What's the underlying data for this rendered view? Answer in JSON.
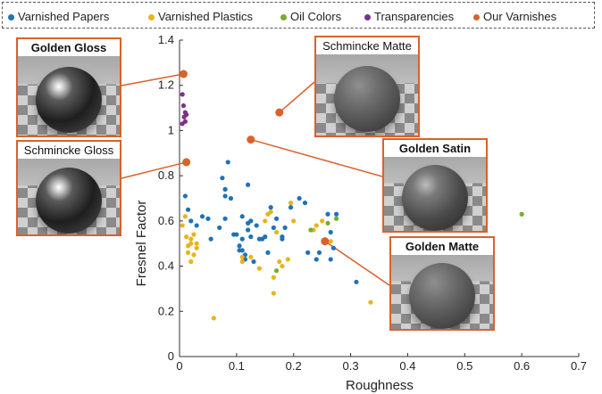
{
  "chart_data": {
    "type": "scatter",
    "title": "",
    "xlabel": "Roughness",
    "ylabel": "Fresnel Factor",
    "xlim": [
      0,
      0.7
    ],
    "ylim": [
      0,
      1.4
    ],
    "xticks": [
      "0",
      "0.1",
      "0.2",
      "0.3",
      "0.4",
      "0.5",
      "0.6",
      "0.7"
    ],
    "yticks": [
      "0",
      "0.2",
      "0.4",
      "0.6",
      "0.8",
      "1",
      "1.2",
      "1.4"
    ],
    "grid": false,
    "legend_position": "top",
    "series": [
      {
        "name": "Varnished Papers",
        "color": "#1f72b8",
        "points": [
          [
            0.01,
            0.71
          ],
          [
            0.015,
            0.65
          ],
          [
            0.02,
            0.6
          ],
          [
            0.03,
            0.58
          ],
          [
            0.04,
            0.62
          ],
          [
            0.05,
            0.61
          ],
          [
            0.055,
            0.52
          ],
          [
            0.07,
            0.57
          ],
          [
            0.075,
            0.79
          ],
          [
            0.08,
            0.74
          ],
          [
            0.08,
            0.71
          ],
          [
            0.08,
            0.61
          ],
          [
            0.085,
            0.86
          ],
          [
            0.09,
            0.7
          ],
          [
            0.095,
            0.54
          ],
          [
            0.1,
            0.54
          ],
          [
            0.105,
            0.49
          ],
          [
            0.105,
            0.47
          ],
          [
            0.11,
            0.62
          ],
          [
            0.11,
            0.52
          ],
          [
            0.11,
            0.47
          ],
          [
            0.115,
            0.45
          ],
          [
            0.115,
            0.43
          ],
          [
            0.12,
            0.76
          ],
          [
            0.12,
            0.59
          ],
          [
            0.12,
            0.56
          ],
          [
            0.125,
            0.6
          ],
          [
            0.125,
            0.53
          ],
          [
            0.13,
            0.42
          ],
          [
            0.135,
            0.58
          ],
          [
            0.14,
            0.52
          ],
          [
            0.145,
            0.52
          ],
          [
            0.15,
            0.53
          ],
          [
            0.155,
            0.46
          ],
          [
            0.16,
            0.66
          ],
          [
            0.165,
            0.57
          ],
          [
            0.17,
            0.61
          ],
          [
            0.18,
            0.53
          ],
          [
            0.18,
            0.52
          ],
          [
            0.185,
            0.57
          ],
          [
            0.195,
            0.66
          ],
          [
            0.21,
            0.7
          ],
          [
            0.22,
            0.68
          ],
          [
            0.225,
            0.46
          ],
          [
            0.24,
            0.43
          ],
          [
            0.245,
            0.46
          ],
          [
            0.26,
            0.63
          ],
          [
            0.265,
            0.55
          ],
          [
            0.265,
            0.43
          ],
          [
            0.27,
            0.48
          ],
          [
            0.275,
            0.63
          ],
          [
            0.31,
            0.33
          ]
        ]
      },
      {
        "name": "Varnished Plastics",
        "color": "#e8b41c",
        "points": [
          [
            0.005,
            0.58
          ],
          [
            0.01,
            0.62
          ],
          [
            0.012,
            0.53
          ],
          [
            0.015,
            0.49
          ],
          [
            0.015,
            0.46
          ],
          [
            0.02,
            0.5
          ],
          [
            0.02,
            0.52
          ],
          [
            0.02,
            0.42
          ],
          [
            0.025,
            0.54
          ],
          [
            0.025,
            0.45
          ],
          [
            0.03,
            0.5
          ],
          [
            0.03,
            0.48
          ],
          [
            0.06,
            0.17
          ],
          [
            0.11,
            0.44
          ],
          [
            0.11,
            0.42
          ],
          [
            0.125,
            0.44
          ],
          [
            0.14,
            0.39
          ],
          [
            0.15,
            0.6
          ],
          [
            0.155,
            0.63
          ],
          [
            0.16,
            0.64
          ],
          [
            0.165,
            0.28
          ],
          [
            0.165,
            0.35
          ],
          [
            0.17,
            0.55
          ],
          [
            0.175,
            0.42
          ],
          [
            0.18,
            0.4
          ],
          [
            0.19,
            0.43
          ],
          [
            0.195,
            0.68
          ],
          [
            0.2,
            0.6
          ],
          [
            0.235,
            0.56
          ],
          [
            0.24,
            0.58
          ],
          [
            0.25,
            0.6
          ],
          [
            0.265,
            0.51
          ],
          [
            0.335,
            0.24
          ]
        ]
      },
      {
        "name": "Oil Colors",
        "color": "#77ac30",
        "points": [
          [
            0.17,
            0.38
          ],
          [
            0.23,
            0.56
          ],
          [
            0.26,
            0.59
          ],
          [
            0.275,
            0.61
          ],
          [
            0.6,
            0.63
          ]
        ]
      },
      {
        "name": "Transparencies",
        "color": "#7e2f8e",
        "points": [
          [
            0.005,
            1.16
          ],
          [
            0.007,
            1.11
          ],
          [
            0.01,
            1.08
          ],
          [
            0.012,
            1.07
          ],
          [
            0.008,
            1.06
          ],
          [
            0.01,
            1.04
          ],
          [
            0.005,
            1.03
          ]
        ]
      },
      {
        "name": "Our Varnishes",
        "color": "#d9622b",
        "points": [
          [
            0.007,
            1.25
          ],
          [
            0.012,
            0.86
          ],
          [
            0.125,
            0.96
          ],
          [
            0.175,
            1.08
          ],
          [
            0.255,
            0.51
          ]
        ]
      }
    ],
    "annotations": [
      {
        "label": "Golden Gloss",
        "bold": true,
        "style": "gloss",
        "point": [
          0.007,
          1.25
        ]
      },
      {
        "label": "Schmincke Gloss",
        "bold": false,
        "style": "gloss",
        "point": [
          0.012,
          0.86
        ]
      },
      {
        "label": "Schmincke Matte",
        "bold": false,
        "style": "matte",
        "point": [
          0.175,
          1.08
        ]
      },
      {
        "label": "Golden Satin",
        "bold": true,
        "style": "satin",
        "point": [
          0.125,
          0.96
        ]
      },
      {
        "label": "Golden Matte",
        "bold": true,
        "style": "matte",
        "point": [
          0.255,
          0.51
        ]
      }
    ]
  }
}
